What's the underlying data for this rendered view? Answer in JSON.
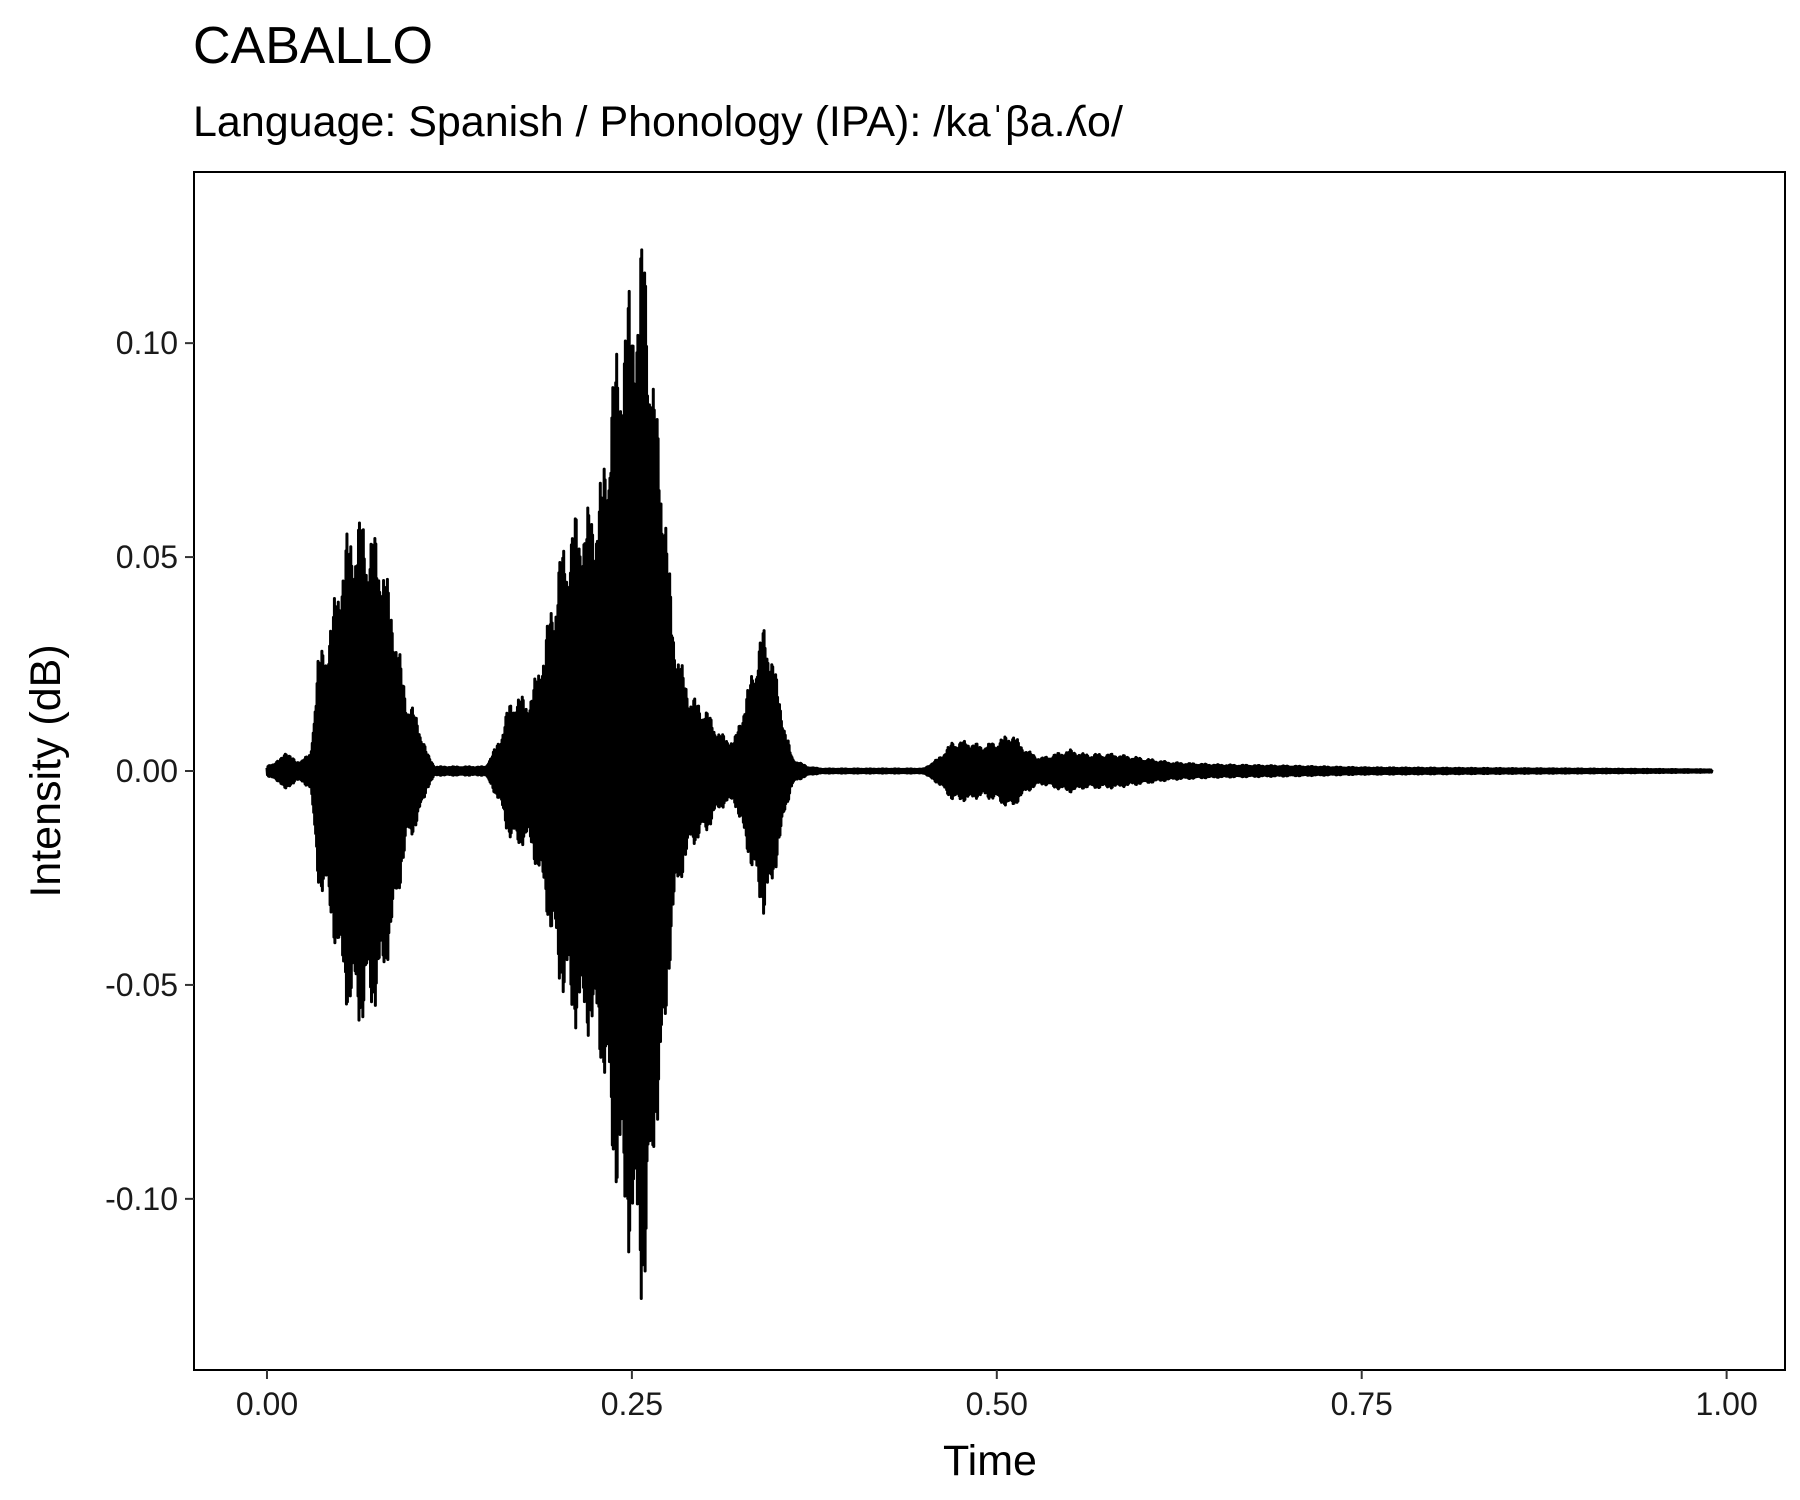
{
  "chart_data": {
    "type": "line",
    "title": "CABALLO",
    "subtitle": "Language: Spanish / Phonology (IPA): /kaˈβa.ʎo/",
    "xlabel": "Time",
    "ylabel": "Intensity (dB)",
    "xlim": [
      -0.05,
      1.04
    ],
    "ylim": [
      -0.14,
      0.14
    ],
    "x_ticks": [
      0.0,
      0.25,
      0.5,
      0.75,
      1.0
    ],
    "x_tick_labels": [
      "0.00",
      "0.25",
      "0.50",
      "0.75",
      "1.00"
    ],
    "y_ticks": [
      -0.1,
      -0.05,
      0.0,
      0.05,
      0.1
    ],
    "y_tick_labels": [
      "-0.10",
      "-0.05",
      "0.00",
      "0.05",
      "0.10"
    ],
    "grid": false,
    "legend": "none",
    "line_color": "#000000",
    "series": [
      {
        "envelope_time": [
          0.0,
          0.01,
          0.013,
          0.02,
          0.03,
          0.035,
          0.04,
          0.045,
          0.05,
          0.055,
          0.06,
          0.065,
          0.07,
          0.075,
          0.08,
          0.085,
          0.09,
          0.095,
          0.1,
          0.105,
          0.11,
          0.115,
          0.12,
          0.15,
          0.16,
          0.165,
          0.17,
          0.18,
          0.19,
          0.2,
          0.21,
          0.22,
          0.225,
          0.23,
          0.235,
          0.24,
          0.245,
          0.25,
          0.255,
          0.258,
          0.26,
          0.265,
          0.27,
          0.275,
          0.28,
          0.29,
          0.3,
          0.31,
          0.32,
          0.33,
          0.335,
          0.34,
          0.345,
          0.35,
          0.355,
          0.36,
          0.37,
          0.38,
          0.45,
          0.46,
          0.47,
          0.48,
          0.49,
          0.5,
          0.51,
          0.52,
          0.53,
          0.54,
          0.55,
          0.56,
          0.58,
          0.6,
          0.62,
          0.65,
          0.7,
          0.75,
          0.8,
          0.85,
          0.9,
          0.95,
          0.99
        ],
        "envelope_amplitude": [
          0.001,
          0.003,
          0.005,
          0.002,
          0.004,
          0.027,
          0.03,
          0.038,
          0.048,
          0.056,
          0.059,
          0.06,
          0.058,
          0.055,
          0.05,
          0.04,
          0.03,
          0.018,
          0.015,
          0.01,
          0.004,
          0.001,
          0.001,
          0.001,
          0.008,
          0.015,
          0.018,
          0.017,
          0.03,
          0.05,
          0.06,
          0.062,
          0.065,
          0.07,
          0.09,
          0.1,
          0.11,
          0.115,
          0.12,
          0.128,
          0.125,
          0.09,
          0.08,
          0.05,
          0.03,
          0.018,
          0.015,
          0.009,
          0.007,
          0.02,
          0.028,
          0.034,
          0.03,
          0.02,
          0.01,
          0.003,
          0.001,
          0.0005,
          0.0005,
          0.003,
          0.007,
          0.007,
          0.006,
          0.007,
          0.009,
          0.005,
          0.003,
          0.004,
          0.005,
          0.004,
          0.004,
          0.003,
          0.002,
          0.0015,
          0.0012,
          0.0008,
          0.0007,
          0.0006,
          0.0005,
          0.0004,
          0.0003
        ]
      }
    ]
  }
}
